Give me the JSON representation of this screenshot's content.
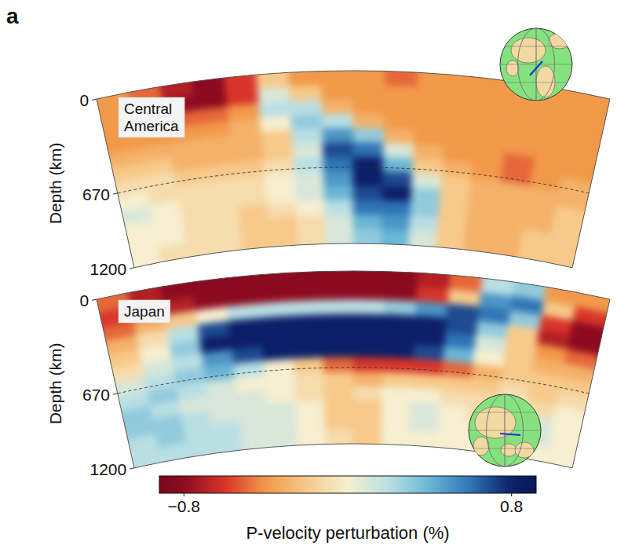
{
  "panel_label": "a",
  "colorbar": {
    "label": "P-velocity perturbation (%)",
    "range": [
      -0.92,
      0.92
    ],
    "ticks": [
      {
        "value": -0.8,
        "label": "−0.8"
      },
      0.8
    ]
  },
  "chart_data": [
    {
      "type": "heatmap",
      "title": "Central America",
      "y_label": "Depth (km)",
      "ylim": [
        0,
        1200
      ],
      "yticks": [
        0,
        670,
        1200
      ],
      "grid": true,
      "tick_labels": "y",
      "cells": [
        [
          -0.4,
          -0.5,
          -0.7,
          -0.8,
          -0.6,
          -0.2,
          -0.4,
          -0.4,
          -0.4,
          -0.5,
          -0.4,
          -0.4,
          -0.4,
          -0.4,
          -0.4,
          -0.4
        ],
        [
          -0.4,
          -0.5,
          -0.8,
          -0.8,
          -0.6,
          0.1,
          -0.2,
          -0.4,
          -0.4,
          -0.4,
          -0.4,
          -0.4,
          -0.4,
          -0.4,
          -0.4,
          -0.4
        ],
        [
          -0.4,
          -0.4,
          -0.5,
          -0.5,
          -0.4,
          0.2,
          0.2,
          -0.3,
          -0.4,
          -0.4,
          -0.4,
          -0.4,
          -0.4,
          -0.4,
          -0.4,
          -0.4
        ],
        [
          -0.4,
          -0.4,
          -0.4,
          -0.4,
          -0.3,
          0.0,
          0.3,
          0.2,
          -0.3,
          -0.4,
          -0.4,
          -0.4,
          -0.4,
          -0.4,
          -0.4,
          -0.4
        ],
        [
          -0.3,
          -0.3,
          -0.3,
          -0.3,
          -0.3,
          -0.2,
          0.2,
          0.5,
          0.3,
          -0.3,
          -0.4,
          -0.4,
          -0.4,
          -0.4,
          -0.4,
          -0.4
        ],
        [
          -0.2,
          -0.2,
          -0.3,
          -0.3,
          -0.3,
          -0.2,
          0.1,
          0.7,
          0.6,
          0.1,
          -0.3,
          -0.4,
          -0.4,
          -0.5,
          -0.4,
          -0.4
        ],
        [
          -0.1,
          -0.1,
          -0.2,
          -0.2,
          -0.2,
          -0.1,
          0.2,
          0.6,
          0.8,
          0.4,
          -0.2,
          -0.3,
          -0.4,
          -0.5,
          -0.4,
          -0.3
        ],
        [
          0.0,
          -0.1,
          -0.1,
          -0.1,
          -0.1,
          0.0,
          0.1,
          0.5,
          0.8,
          0.7,
          0.1,
          -0.2,
          -0.3,
          -0.3,
          -0.3,
          -0.3
        ],
        [
          0.1,
          0.0,
          -0.1,
          -0.1,
          -0.1,
          0.0,
          0.1,
          0.4,
          0.7,
          0.8,
          0.3,
          -0.2,
          -0.3,
          -0.3,
          -0.3,
          -0.2
        ],
        [
          0.0,
          0.0,
          -0.1,
          -0.1,
          -0.2,
          -0.1,
          0.0,
          0.2,
          0.6,
          0.6,
          0.3,
          -0.2,
          -0.3,
          -0.3,
          -0.3,
          -0.2
        ],
        [
          0.0,
          0.0,
          -0.1,
          -0.1,
          -0.2,
          -0.2,
          -0.1,
          0.1,
          0.4,
          0.5,
          0.2,
          -0.2,
          -0.3,
          -0.3,
          -0.2,
          -0.2
        ],
        [
          0.0,
          -0.1,
          -0.1,
          -0.1,
          -0.2,
          -0.2,
          -0.1,
          0.1,
          0.3,
          0.4,
          0.1,
          -0.2,
          -0.3,
          -0.3,
          -0.2,
          -0.2
        ]
      ]
    },
    {
      "type": "heatmap",
      "title": "Japan",
      "y_label": "Depth (km)",
      "ylim": [
        0,
        1200
      ],
      "yticks": [
        0,
        670,
        1200
      ],
      "grid": true,
      "tick_labels": "y",
      "cells": [
        [
          -0.5,
          -0.7,
          -0.8,
          -0.8,
          -0.8,
          -0.8,
          -0.8,
          -0.8,
          -0.8,
          -0.8,
          -0.7,
          -0.5,
          0.2,
          0.3,
          -0.4,
          -0.4
        ],
        [
          -0.6,
          -0.6,
          -0.7,
          -0.8,
          -0.8,
          -0.8,
          -0.8,
          -0.8,
          -0.8,
          -0.8,
          -0.6,
          -0.2,
          0.5,
          0.6,
          -0.2,
          -0.6
        ],
        [
          -0.5,
          -0.3,
          -0.2,
          0.0,
          0.2,
          0.2,
          0.2,
          0.2,
          0.2,
          0.3,
          0.5,
          0.7,
          0.6,
          0.3,
          -0.6,
          -0.8
        ],
        [
          -0.3,
          -0.1,
          0.2,
          0.7,
          0.8,
          0.8,
          0.8,
          0.8,
          0.8,
          0.8,
          0.8,
          0.7,
          0.3,
          -0.2,
          -0.7,
          -0.8
        ],
        [
          -0.2,
          0.0,
          0.3,
          0.8,
          0.8,
          0.8,
          0.8,
          0.8,
          0.8,
          0.8,
          0.8,
          0.6,
          0.1,
          -0.2,
          -0.4,
          -0.5
        ],
        [
          -0.1,
          0.1,
          0.2,
          0.5,
          0.7,
          0.8,
          0.8,
          0.8,
          0.8,
          0.8,
          0.7,
          0.4,
          0.0,
          -0.2,
          -0.3,
          -0.3
        ],
        [
          0.1,
          0.2,
          0.3,
          0.4,
          0.2,
          0.0,
          -0.2,
          -0.5,
          -0.6,
          -0.6,
          -0.6,
          -0.5,
          -0.3,
          -0.2,
          -0.2,
          -0.2
        ],
        [
          0.2,
          0.3,
          0.2,
          0.1,
          0.0,
          0.0,
          -0.1,
          -0.2,
          -0.3,
          -0.2,
          -0.2,
          -0.2,
          -0.2,
          -0.1,
          -0.2,
          -0.1
        ],
        [
          0.3,
          0.2,
          0.1,
          0.1,
          0.1,
          0.0,
          -0.1,
          -0.2,
          -0.1,
          0.0,
          0.0,
          -0.1,
          -0.1,
          0.0,
          -0.1,
          0.0
        ],
        [
          0.3,
          0.3,
          0.2,
          0.1,
          0.1,
          0.1,
          0.0,
          -0.2,
          -0.2,
          0.0,
          0.1,
          0.0,
          -0.1,
          0.0,
          0.1,
          0.0
        ],
        [
          0.2,
          0.3,
          0.2,
          0.2,
          0.1,
          0.1,
          0.0,
          -0.2,
          -0.2,
          0.0,
          0.1,
          0.0,
          0.0,
          0.1,
          0.1,
          0.0
        ],
        [
          0.2,
          0.2,
          0.2,
          0.2,
          0.1,
          0.1,
          0.0,
          -0.1,
          -0.2,
          0.0,
          0.0,
          0.0,
          0.0,
          0.1,
          0.0,
          0.0
        ]
      ]
    }
  ]
}
